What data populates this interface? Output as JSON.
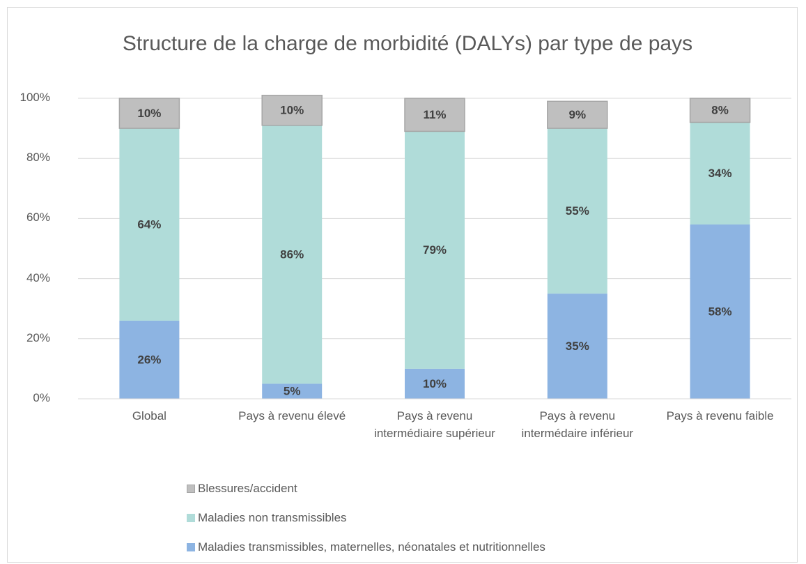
{
  "chart_data": {
    "type": "stacked_bar",
    "title": "Structure de la charge de morbidité (DALYs) par type de pays",
    "categories": [
      "Global",
      "Pays à revenu élevé",
      "Pays à revenu intermédiaire supérieur",
      "Pays à revenu intermédaire inférieur",
      "Pays à revenu faible"
    ],
    "series": [
      {
        "name": "Maladies transmissibles, maternelles, néonatales et nutritionnelles",
        "color": "#8db4e2",
        "values": [
          26,
          5,
          10,
          35,
          58
        ],
        "value_labels": [
          "26%",
          "5%",
          "10%",
          "35%",
          "58%"
        ]
      },
      {
        "name": "Maladies non transmissibles",
        "color": "#b0dcd9",
        "values": [
          64,
          86,
          79,
          55,
          34
        ],
        "value_labels": [
          "64%",
          "86%",
          "79%",
          "55%",
          "34%"
        ]
      },
      {
        "name": "Blessures/accident",
        "color": "#bfbfbf",
        "values": [
          10,
          10,
          11,
          9,
          8
        ],
        "value_labels": [
          "10%",
          "10%",
          "11%",
          "9%",
          "8%"
        ]
      }
    ],
    "ylim": [
      0,
      100
    ],
    "yticks": [
      {
        "value": 0,
        "label": "0%"
      },
      {
        "value": 20,
        "label": "20%"
      },
      {
        "value": 40,
        "label": "40%"
      },
      {
        "value": 60,
        "label": "60%"
      },
      {
        "value": 80,
        "label": "80%"
      },
      {
        "value": 100,
        "label": "100%"
      }
    ],
    "grid": true
  }
}
